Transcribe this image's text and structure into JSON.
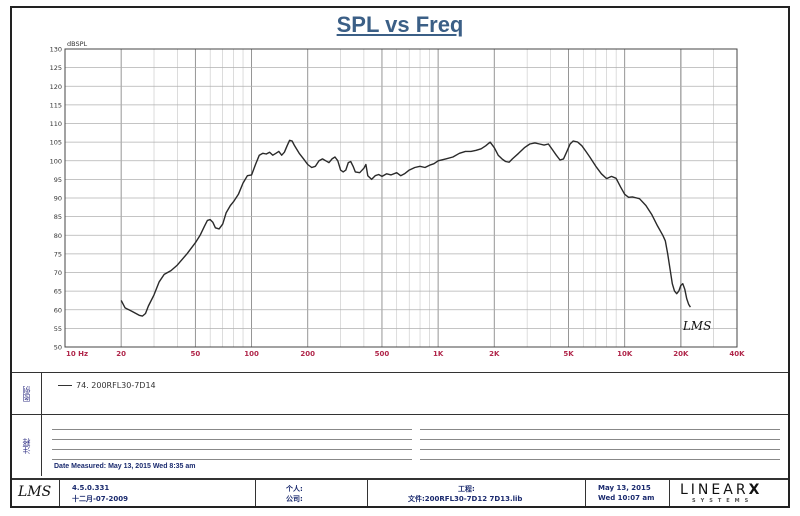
{
  "chart_data": {
    "type": "line",
    "title": "SPL vs Freq",
    "ylabel": "dBSPL",
    "xscale": "log",
    "xlim": [
      10,
      40000
    ],
    "ylim": [
      50,
      130
    ],
    "x_tick_labels": [
      {
        "value": 10,
        "label": "10 Hz"
      },
      {
        "value": 20,
        "label": "20"
      },
      {
        "value": 50,
        "label": "50"
      },
      {
        "value": 100,
        "label": "100"
      },
      {
        "value": 200,
        "label": "200"
      },
      {
        "value": 500,
        "label": "500"
      },
      {
        "value": 1000,
        "label": "1K"
      },
      {
        "value": 2000,
        "label": "2K"
      },
      {
        "value": 5000,
        "label": "5K"
      },
      {
        "value": 10000,
        "label": "10K"
      },
      {
        "value": 20000,
        "label": "20K"
      },
      {
        "value": 40000,
        "label": "40K"
      }
    ],
    "y_ticks": [
      50,
      55,
      60,
      65,
      70,
      75,
      80,
      85,
      90,
      95,
      100,
      105,
      110,
      115,
      120,
      125,
      130
    ],
    "grid": true,
    "series": [
      {
        "name": "74. 200RFL30-7D14",
        "color": "#2a2a2a",
        "points": [
          [
            20,
            62.5
          ],
          [
            21,
            60.5
          ],
          [
            22,
            60
          ],
          [
            23,
            59.5
          ],
          [
            25,
            58.5
          ],
          [
            26,
            58.3
          ],
          [
            27,
            59
          ],
          [
            28,
            61
          ],
          [
            30,
            64
          ],
          [
            32,
            67.5
          ],
          [
            34,
            69.5
          ],
          [
            37,
            70.5
          ],
          [
            40,
            72
          ],
          [
            45,
            75
          ],
          [
            50,
            78
          ],
          [
            53,
            80
          ],
          [
            56,
            82.5
          ],
          [
            58,
            84
          ],
          [
            60,
            84.2
          ],
          [
            62,
            83.5
          ],
          [
            64,
            82
          ],
          [
            67,
            81.7
          ],
          [
            70,
            83
          ],
          [
            73,
            86
          ],
          [
            77,
            88
          ],
          [
            80,
            89
          ],
          [
            85,
            91
          ],
          [
            90,
            94
          ],
          [
            95,
            96
          ],
          [
            100,
            96.2
          ],
          [
            105,
            99
          ],
          [
            110,
            101.5
          ],
          [
            115,
            102
          ],
          [
            120,
            101.8
          ],
          [
            125,
            102.3
          ],
          [
            130,
            101.5
          ],
          [
            135,
            102
          ],
          [
            140,
            102.5
          ],
          [
            145,
            101.5
          ],
          [
            150,
            102.3
          ],
          [
            155,
            104
          ],
          [
            160,
            105.5
          ],
          [
            165,
            105.3
          ],
          [
            170,
            104
          ],
          [
            180,
            102
          ],
          [
            190,
            100.5
          ],
          [
            200,
            99
          ],
          [
            210,
            98.2
          ],
          [
            220,
            98.5
          ],
          [
            230,
            100
          ],
          [
            240,
            100.5
          ],
          [
            250,
            100
          ],
          [
            260,
            99.5
          ],
          [
            270,
            100.5
          ],
          [
            280,
            101
          ],
          [
            290,
            100
          ],
          [
            300,
            97.5
          ],
          [
            310,
            97
          ],
          [
            320,
            97.5
          ],
          [
            330,
            99.5
          ],
          [
            340,
            99.8
          ],
          [
            350,
            98.5
          ],
          [
            360,
            97
          ],
          [
            380,
            96.8
          ],
          [
            400,
            98
          ],
          [
            410,
            99
          ],
          [
            420,
            96
          ],
          [
            440,
            95
          ],
          [
            460,
            96
          ],
          [
            480,
            96.3
          ],
          [
            500,
            95.8
          ],
          [
            530,
            96.5
          ],
          [
            560,
            96.2
          ],
          [
            600,
            96.8
          ],
          [
            630,
            96
          ],
          [
            660,
            96.5
          ],
          [
            700,
            97.5
          ],
          [
            750,
            98.2
          ],
          [
            800,
            98.5
          ],
          [
            850,
            98.2
          ],
          [
            900,
            98.8
          ],
          [
            950,
            99.2
          ],
          [
            1000,
            100
          ],
          [
            1100,
            100.5
          ],
          [
            1200,
            101
          ],
          [
            1300,
            102
          ],
          [
            1400,
            102.5
          ],
          [
            1500,
            102.5
          ],
          [
            1600,
            102.8
          ],
          [
            1700,
            103.2
          ],
          [
            1800,
            104
          ],
          [
            1900,
            105
          ],
          [
            2000,
            103.5
          ],
          [
            2100,
            101.5
          ],
          [
            2200,
            100.5
          ],
          [
            2300,
            99.8
          ],
          [
            2400,
            99.6
          ],
          [
            2500,
            100.5
          ],
          [
            2700,
            102
          ],
          [
            2900,
            103.5
          ],
          [
            3100,
            104.5
          ],
          [
            3300,
            104.8
          ],
          [
            3500,
            104.5
          ],
          [
            3700,
            104.2
          ],
          [
            3900,
            104.5
          ],
          [
            4100,
            103
          ],
          [
            4300,
            101.5
          ],
          [
            4500,
            100.2
          ],
          [
            4700,
            100.5
          ],
          [
            4900,
            102.5
          ],
          [
            5100,
            104.5
          ],
          [
            5300,
            105.3
          ],
          [
            5600,
            105
          ],
          [
            5900,
            104
          ],
          [
            6200,
            102.5
          ],
          [
            6500,
            101
          ],
          [
            7000,
            98.5
          ],
          [
            7500,
            96.5
          ],
          [
            8000,
            95.2
          ],
          [
            8500,
            95.8
          ],
          [
            9000,
            95.3
          ],
          [
            9500,
            93
          ],
          [
            10000,
            91
          ],
          [
            10500,
            90.2
          ],
          [
            11000,
            90.3
          ],
          [
            12000,
            89.8
          ],
          [
            13000,
            88
          ],
          [
            14000,
            85.5
          ],
          [
            15000,
            82.5
          ],
          [
            16000,
            80
          ],
          [
            16500,
            78.5
          ],
          [
            17000,
            75
          ],
          [
            17500,
            71
          ],
          [
            18000,
            67
          ],
          [
            18500,
            65
          ],
          [
            19000,
            64.3
          ],
          [
            19500,
            65
          ],
          [
            20000,
            66.5
          ],
          [
            20500,
            67
          ],
          [
            21000,
            65.5
          ],
          [
            21500,
            63
          ],
          [
            22000,
            61.5
          ],
          [
            22500,
            60.7
          ]
        ]
      }
    ],
    "annotations": [
      "LMS"
    ]
  },
  "legend_band": {
    "label": "图例",
    "entry": "74. 200RFL30-7D14"
  },
  "notes_band": {
    "label": "注释",
    "date_measured": "Date Measured: May 13, 2015  Wed  8:35 am"
  },
  "footer": {
    "logo": "LMS",
    "version": "4.5.0.331",
    "version_date": "十二月-07-2009",
    "person_label": "个人:",
    "company_label": "公司:",
    "project_label": "工程:",
    "file_label": "文件:200RFL30-7D12  7D13.lib",
    "date": "May 13, 2015",
    "time": "Wed 10:07 am",
    "brand_main": "LINEAR",
    "brand_x": "X",
    "brand_sub": "SYSTEMS"
  }
}
